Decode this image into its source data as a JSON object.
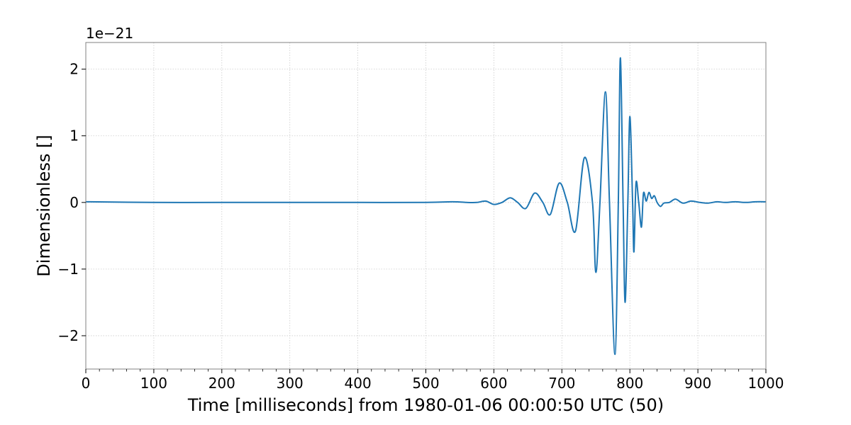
{
  "chart_data": {
    "type": "line",
    "title": "",
    "xlabel": "Time [milliseconds] from 1980-01-06 00:00:50 UTC (50)",
    "ylabel": "Dimensionless []",
    "y_offset_label": "1e−21",
    "xlim": [
      0,
      1000
    ],
    "ylim": [
      -2.5,
      2.4
    ],
    "x_ticks": [
      0,
      100,
      200,
      300,
      400,
      500,
      600,
      700,
      800,
      900,
      1000
    ],
    "x_tick_labels": [
      "0",
      "100",
      "200",
      "300",
      "400",
      "500",
      "600",
      "700",
      "800",
      "900",
      "1000"
    ],
    "x_minor_step": 20,
    "y_ticks": [
      -2,
      -1,
      0,
      1,
      2
    ],
    "y_tick_labels": [
      "−2",
      "−1",
      "0",
      "1",
      "2"
    ],
    "grid": true,
    "line_color": "#1f77b4",
    "series": [
      {
        "x": [
          0,
          100,
          200,
          300,
          400,
          500,
          540,
          560,
          575,
          588,
          600,
          612,
          624,
          635,
          647,
          660,
          672,
          683,
          696,
          708,
          720,
          733,
          745,
          750,
          756,
          764,
          770,
          778,
          783,
          786,
          790,
          793,
          797,
          800,
          804,
          806,
          809,
          813,
          817,
          820,
          824,
          828,
          832,
          836,
          840,
          845,
          850,
          858,
          867,
          878,
          890,
          903,
          915,
          928,
          940,
          955,
          970,
          985,
          1000
        ],
        "y": [
          0.01,
          0.0,
          0.0,
          0.0,
          0.0,
          0.0,
          0.01,
          0.0,
          0.0,
          0.02,
          -0.03,
          0.0,
          0.07,
          0.0,
          -0.09,
          0.14,
          0.0,
          -0.18,
          0.29,
          0.0,
          -0.43,
          0.67,
          0.0,
          -1.05,
          0.0,
          1.66,
          0.0,
          -2.28,
          0.0,
          2.17,
          0.0,
          -1.5,
          0.0,
          1.29,
          0.0,
          -0.74,
          0.29,
          0.0,
          -0.37,
          0.14,
          0.02,
          0.15,
          0.06,
          0.1,
          0.0,
          -0.06,
          -0.01,
          0.0,
          0.05,
          -0.01,
          0.02,
          0.0,
          -0.01,
          0.01,
          0.0,
          0.01,
          0.0,
          0.01,
          0.01
        ]
      }
    ]
  }
}
